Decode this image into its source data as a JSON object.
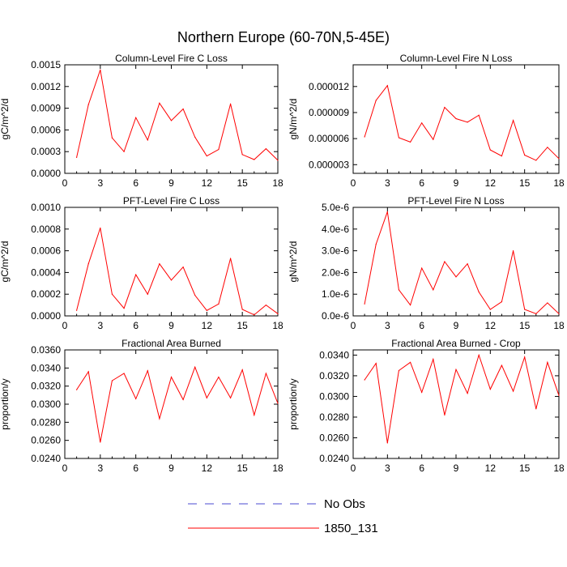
{
  "figure": {
    "title": "Northern Europe (60-70N,5-45E)"
  },
  "legend": {
    "position": "bottom-center",
    "entries": [
      {
        "label": "No Obs",
        "color": "#4a4ad0",
        "dash": "dashed"
      },
      {
        "label": "1850_131",
        "color": "#ff0000",
        "dash": "solid"
      }
    ]
  },
  "chart_data": [
    {
      "type": "line",
      "title": "Column-Level Fire C Loss",
      "ylabel": "gC/m^2/d",
      "xlim": [
        0,
        18
      ],
      "xticks": [
        "0",
        "3",
        "6",
        "9",
        "12",
        "15",
        "18"
      ],
      "ylim": [
        0,
        0.0015
      ],
      "yticks": [
        "0.0000",
        "0.0003",
        "0.0006",
        "0.0009",
        "0.0012",
        "0.0015"
      ],
      "series": [
        {
          "name": "1850_131",
          "color": "#ff0000",
          "x": [
            1,
            2,
            3,
            4,
            5,
            6,
            7,
            8,
            9,
            10,
            11,
            12,
            13,
            14,
            15,
            16,
            17,
            18
          ],
          "values": [
            0.00022,
            0.00095,
            0.00143,
            0.00049,
            0.0003,
            0.00077,
            0.00046,
            0.00097,
            0.00073,
            0.00089,
            0.0005,
            0.00024,
            0.00033,
            0.00096,
            0.00026,
            0.00019,
            0.00034,
            0.00018
          ]
        }
      ]
    },
    {
      "type": "line",
      "title": "Column-Level Fire N Loss",
      "ylabel": "gN/m^2/d",
      "xlim": [
        0,
        18
      ],
      "xticks": [
        "0",
        "3",
        "6",
        "9",
        "12",
        "15",
        "18"
      ],
      "ylim": [
        2e-06,
        1.45e-05
      ],
      "yticks": [
        "0.000003",
        "0.000006",
        "0.000009",
        "0.000012"
      ],
      "ytick_values": [
        3e-06,
        6e-06,
        9e-06,
        1.2e-05
      ],
      "series": [
        {
          "name": "1850_131",
          "color": "#ff0000",
          "x": [
            1,
            2,
            3,
            4,
            5,
            6,
            7,
            8,
            9,
            10,
            11,
            12,
            13,
            14,
            15,
            16,
            17,
            18
          ],
          "values": [
            6.2e-06,
            1.04e-05,
            1.21e-05,
            6.1e-06,
            5.6e-06,
            7.8e-06,
            5.9e-06,
            9.6e-06,
            8.3e-06,
            7.9e-06,
            8.7e-06,
            4.7e-06,
            4e-06,
            8.1e-06,
            4.1e-06,
            3.5e-06,
            5e-06,
            3.7e-06
          ]
        }
      ]
    },
    {
      "type": "line",
      "title": "PFT-Level Fire C Loss",
      "ylabel": "gC/m^2/d",
      "xlim": [
        0,
        18
      ],
      "xticks": [
        "0",
        "3",
        "6",
        "9",
        "12",
        "15",
        "18"
      ],
      "ylim": [
        0,
        0.001
      ],
      "yticks": [
        "0.0000",
        "0.0002",
        "0.0004",
        "0.0006",
        "0.0008",
        "0.0010"
      ],
      "series": [
        {
          "name": "1850_131",
          "color": "#ff0000",
          "x": [
            1,
            2,
            3,
            4,
            5,
            6,
            7,
            8,
            9,
            10,
            11,
            12,
            13,
            14,
            15,
            16,
            17,
            18
          ],
          "values": [
            5e-05,
            0.00048,
            0.00081,
            0.0002,
            7e-05,
            0.00038,
            0.0002,
            0.00048,
            0.00033,
            0.00045,
            0.00019,
            5e-05,
            0.00011,
            0.00053,
            6e-05,
            1e-05,
            0.0001,
            2e-05
          ]
        }
      ]
    },
    {
      "type": "line",
      "title": "PFT-Level Fire N Loss",
      "ylabel": "gN/m^2/d",
      "xlim": [
        0,
        18
      ],
      "xticks": [
        "0",
        "3",
        "6",
        "9",
        "12",
        "15",
        "18"
      ],
      "ylim": [
        0,
        5e-06
      ],
      "yticks": [
        "0.0e-6",
        "1.0e-6",
        "2.0e-6",
        "3.0e-6",
        "4.0e-6",
        "5.0e-6"
      ],
      "series": [
        {
          "name": "1850_131",
          "color": "#ff0000",
          "x": [
            1,
            2,
            3,
            4,
            5,
            6,
            7,
            8,
            9,
            10,
            11,
            12,
            13,
            14,
            15,
            16,
            17,
            18
          ],
          "values": [
            5.5e-07,
            3.3e-06,
            4.8e-06,
            1.2e-06,
            5e-07,
            2.2e-06,
            1.2e-06,
            2.5e-06,
            1.8e-06,
            2.4e-06,
            1.1e-06,
            3e-07,
            6.5e-07,
            3e-06,
            3e-07,
            1e-07,
            6e-07,
            1e-07
          ]
        }
      ]
    },
    {
      "type": "line",
      "title": "Fractional Area Burned",
      "ylabel": "proportion/y",
      "xlim": [
        0,
        18
      ],
      "xticks": [
        "0",
        "3",
        "6",
        "9",
        "12",
        "15",
        "18"
      ],
      "ylim": [
        0.024,
        0.036
      ],
      "yticks": [
        "0.0240",
        "0.0260",
        "0.0280",
        "0.0300",
        "0.0320",
        "0.0340",
        "0.0360"
      ],
      "series": [
        {
          "name": "1850_131",
          "color": "#ff0000",
          "x": [
            1,
            2,
            3,
            4,
            5,
            6,
            7,
            8,
            9,
            10,
            11,
            12,
            13,
            14,
            15,
            16,
            17,
            18
          ],
          "values": [
            0.0316,
            0.0336,
            0.0258,
            0.0326,
            0.0334,
            0.0306,
            0.0337,
            0.0284,
            0.033,
            0.0305,
            0.0341,
            0.0307,
            0.033,
            0.0307,
            0.0338,
            0.0288,
            0.0334,
            0.0301
          ]
        }
      ]
    },
    {
      "type": "line",
      "title": "Fractional Area Burned - Crop",
      "ylabel": "proportion/y",
      "xlim": [
        0,
        18
      ],
      "xticks": [
        "0",
        "3",
        "6",
        "9",
        "12",
        "15",
        "18"
      ],
      "ylim": [
        0.024,
        0.0345
      ],
      "yticks": [
        "0.0240",
        "0.0260",
        "0.0280",
        "0.0300",
        "0.0320",
        "0.0340"
      ],
      "ytick_values": [
        0.024,
        0.026,
        0.028,
        0.03,
        0.032,
        0.034
      ],
      "series": [
        {
          "name": "1850_131",
          "color": "#ff0000",
          "x": [
            1,
            2,
            3,
            4,
            5,
            6,
            7,
            8,
            9,
            10,
            11,
            12,
            13,
            14,
            15,
            16,
            17,
            18
          ],
          "values": [
            0.0316,
            0.0332,
            0.0255,
            0.0325,
            0.0333,
            0.0304,
            0.0336,
            0.0282,
            0.0326,
            0.0303,
            0.034,
            0.0307,
            0.033,
            0.0305,
            0.0338,
            0.0288,
            0.0333,
            0.0301
          ]
        }
      ]
    }
  ]
}
